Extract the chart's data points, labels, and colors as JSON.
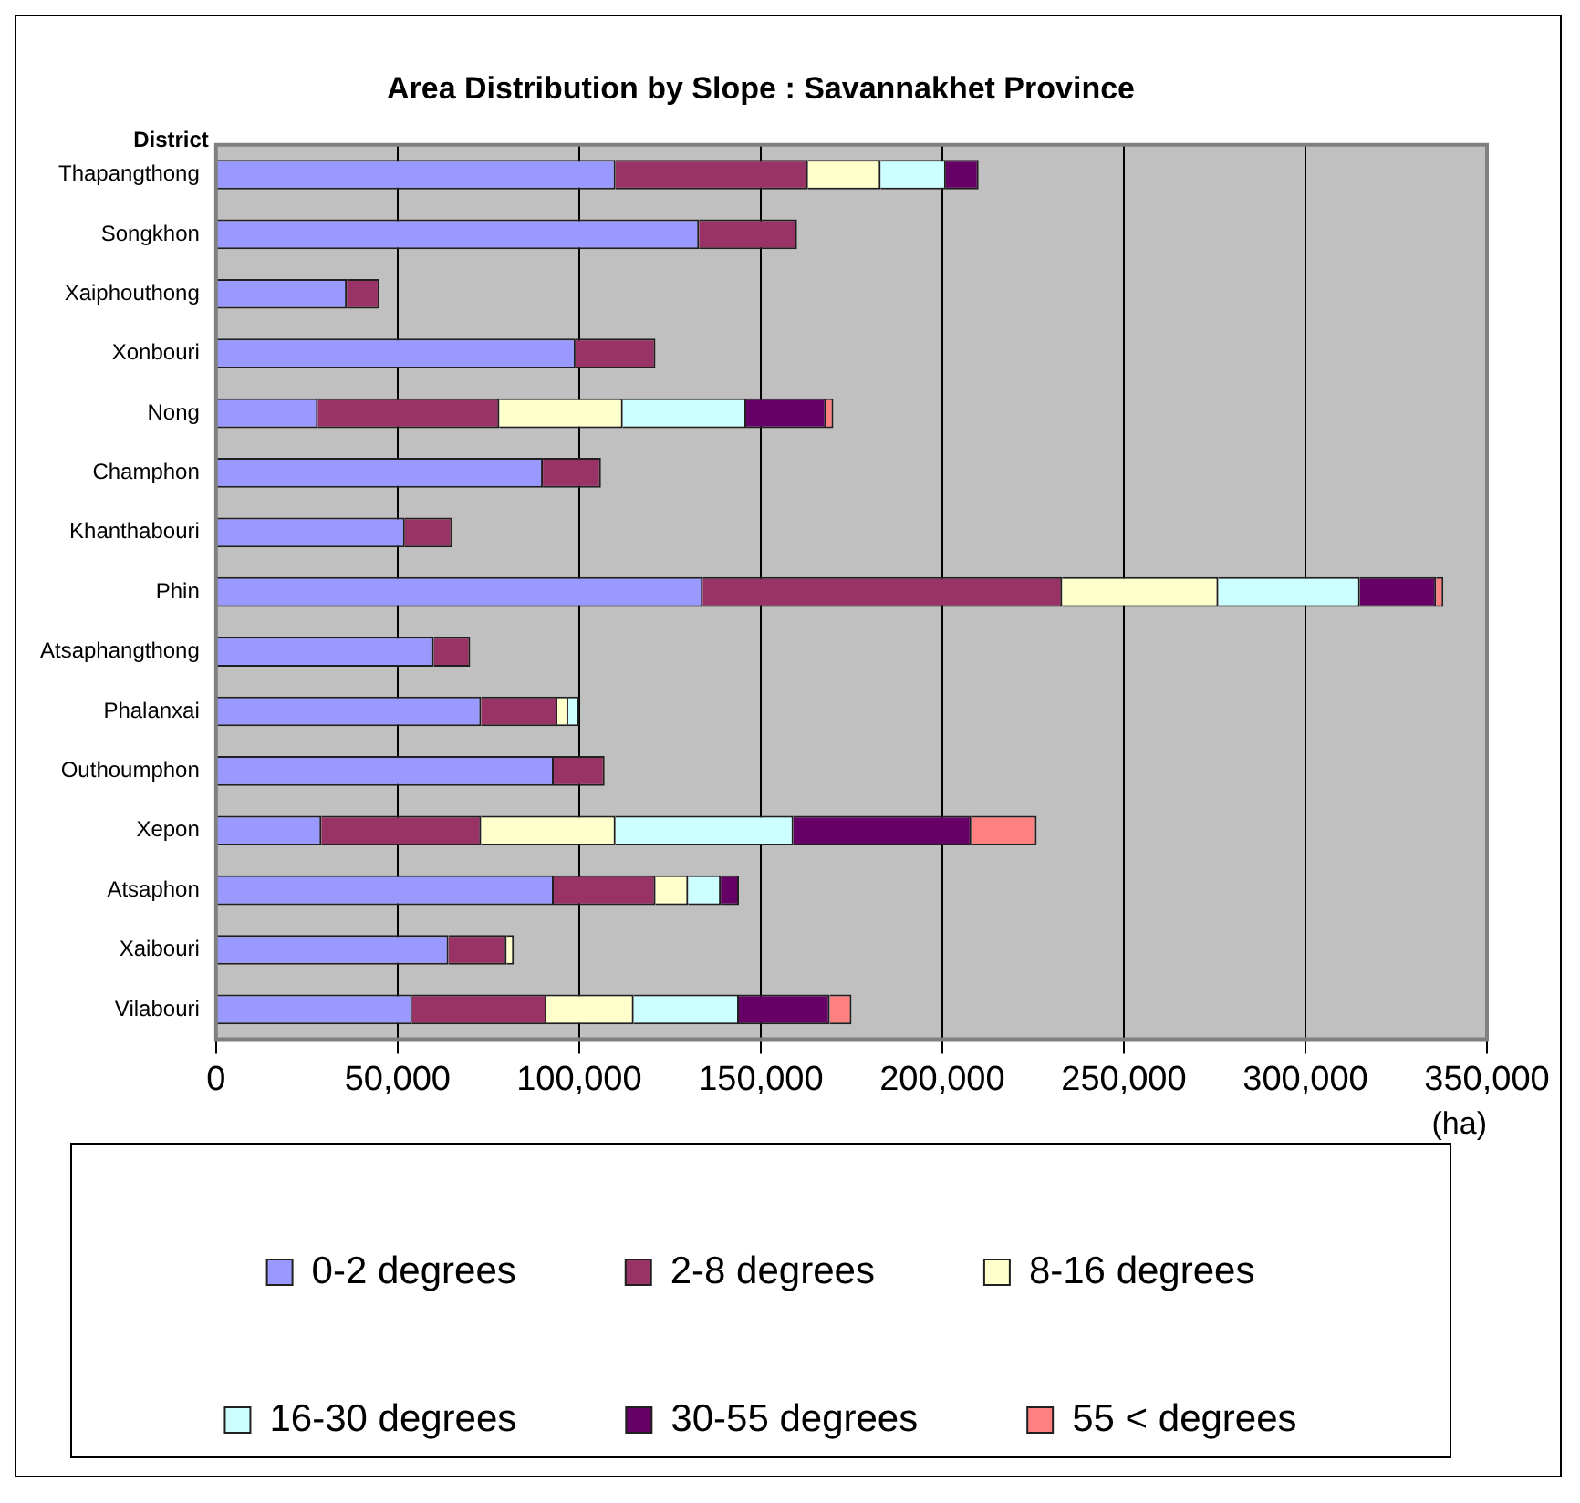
{
  "chart_data": {
    "type": "bar",
    "orientation": "horizontal",
    "stacked": true,
    "title": "Area Distribution by Slope : Savannakhet Province",
    "ylabel": "District",
    "xlabel": "(ha)",
    "categories": [
      "Thapangthong",
      "Songkhon",
      "Xaiphouthong",
      "Xonbouri",
      "Nong",
      "Champhon",
      "Khanthabouri",
      "Phin",
      "Atsaphangthong",
      "Phalanxai",
      "Outhoumphon",
      "Xepon",
      "Atsaphon",
      "Xaibouri",
      "Vilabouri"
    ],
    "series": [
      {
        "name": "0-2 degrees",
        "color": "#9999ff",
        "values": [
          110000,
          133000,
          36000,
          99000,
          28000,
          90000,
          52000,
          134000,
          60000,
          73000,
          93000,
          29000,
          93000,
          64000,
          54000
        ]
      },
      {
        "name": "2-8 degrees",
        "color": "#993366",
        "values": [
          53000,
          27000,
          9000,
          22000,
          50000,
          16000,
          13000,
          99000,
          10000,
          21000,
          14000,
          44000,
          28000,
          16000,
          37000
        ]
      },
      {
        "name": "8-16 degrees",
        "color": "#ffffcc",
        "values": [
          20000,
          null,
          null,
          null,
          34000,
          null,
          null,
          43000,
          null,
          3000,
          null,
          37000,
          9000,
          2000,
          24000
        ]
      },
      {
        "name": "16-30 degrees",
        "color": "#ccffff",
        "values": [
          18000,
          null,
          null,
          null,
          34000,
          null,
          null,
          39000,
          null,
          3000,
          null,
          49000,
          9000,
          null,
          29000
        ]
      },
      {
        "name": "30-55 degrees",
        "color": "#660066",
        "values": [
          9000,
          null,
          null,
          null,
          22000,
          null,
          null,
          21000,
          null,
          null,
          null,
          49000,
          5000,
          null,
          25000
        ]
      },
      {
        "name": "55 < degrees",
        "color": "#ff8080",
        "values": [
          null,
          null,
          null,
          null,
          2000,
          null,
          null,
          2000,
          null,
          null,
          null,
          18000,
          null,
          null,
          6000
        ]
      }
    ],
    "xlim": [
      0,
      350000
    ],
    "xticks": [
      0,
      {
        "value": 50000,
        "label": "50,000"
      },
      {
        "value": 100000,
        "label": "100,000"
      },
      {
        "value": 150000,
        "label": "150,000"
      },
      {
        "value": 200000,
        "label": "200,000"
      },
      {
        "value": 250000,
        "label": "250,000"
      },
      {
        "value": 300000,
        "label": "300,000"
      },
      {
        "value": 350000,
        "label": "350,000"
      }
    ],
    "grid": "x",
    "legend": "bottom"
  }
}
